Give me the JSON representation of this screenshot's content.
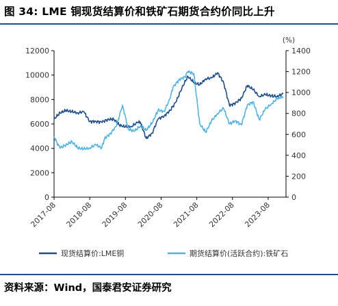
{
  "figure": {
    "title": "图 34: LME 铜现货结算价和铁矿石期货合约价同比上升",
    "source": "资料来源：Wind，国泰君安证券研究"
  },
  "chart_data": {
    "type": "line",
    "left_unit": "",
    "right_unit": "(%)",
    "left_axis": {
      "ticks": [
        0,
        2000,
        4000,
        6000,
        8000,
        10000,
        12000
      ],
      "ylim": [
        0,
        12000
      ]
    },
    "right_axis": {
      "ticks": [
        0,
        200,
        400,
        600,
        800,
        1000,
        1200,
        1400
      ],
      "ylim": [
        0,
        1400
      ]
    },
    "x_ticks": [
      "2017-08",
      "2018-08",
      "2019-08",
      "2020-08",
      "2021-08",
      "2022-08",
      "2023-08"
    ],
    "x_range": [
      "2017-08",
      "2024-02"
    ],
    "grid": false,
    "legend_position": "bottom",
    "series": [
      {
        "name": "现货结算价:LME铜",
        "axis": "left",
        "color": "#1f4e8c",
        "x": [
          "2017-08",
          "2017-10",
          "2017-12",
          "2018-02",
          "2018-04",
          "2018-06",
          "2018-08",
          "2018-10",
          "2018-12",
          "2019-02",
          "2019-04",
          "2019-06",
          "2019-08",
          "2019-10",
          "2019-12",
          "2020-01",
          "2020-03",
          "2020-05",
          "2020-07",
          "2020-09",
          "2020-11",
          "2021-01",
          "2021-03",
          "2021-05",
          "2021-07",
          "2021-09",
          "2021-11",
          "2022-01",
          "2022-03",
          "2022-05",
          "2022-07",
          "2022-09",
          "2022-11",
          "2023-01",
          "2023-03",
          "2023-05",
          "2023-07",
          "2023-09",
          "2023-11",
          "2024-01"
        ],
        "y": [
          6400,
          6900,
          7100,
          7000,
          6900,
          7000,
          6200,
          6200,
          6150,
          6350,
          6400,
          5900,
          5750,
          5800,
          6100,
          6150,
          4800,
          5250,
          6400,
          6650,
          7100,
          7800,
          8950,
          9900,
          9400,
          9200,
          9700,
          9750,
          10200,
          9400,
          7500,
          7700,
          8100,
          9150,
          8800,
          8250,
          8400,
          8300,
          8250,
          8450
        ]
      },
      {
        "name": "期货结算价(活跃合约):铁矿石",
        "axis": "right",
        "color": "#4fb3e8",
        "x": [
          "2017-08",
          "2017-09",
          "2017-10",
          "2017-12",
          "2018-02",
          "2018-04",
          "2018-06",
          "2018-08",
          "2018-10",
          "2018-12",
          "2019-01",
          "2019-03",
          "2019-05",
          "2019-07",
          "2019-09",
          "2019-11",
          "2020-01",
          "2020-03",
          "2020-05",
          "2020-07",
          "2020-09",
          "2020-11",
          "2020-12",
          "2021-02",
          "2021-04",
          "2021-05",
          "2021-07",
          "2021-09",
          "2021-11",
          "2022-01",
          "2022-03",
          "2022-05",
          "2022-07",
          "2022-09",
          "2022-11",
          "2023-01",
          "2023-03",
          "2023-05",
          "2023-07",
          "2023-09",
          "2023-11",
          "2024-01"
        ],
        "y": [
          580,
          520,
          470,
          500,
          530,
          470,
          460,
          470,
          500,
          470,
          560,
          610,
          680,
          880,
          650,
          630,
          680,
          640,
          710,
          830,
          820,
          940,
          1050,
          1120,
          1150,
          1200,
          1180,
          700,
          620,
          730,
          800,
          850,
          700,
          730,
          690,
          880,
          910,
          740,
          840,
          890,
          940,
          960
        ]
      }
    ]
  }
}
